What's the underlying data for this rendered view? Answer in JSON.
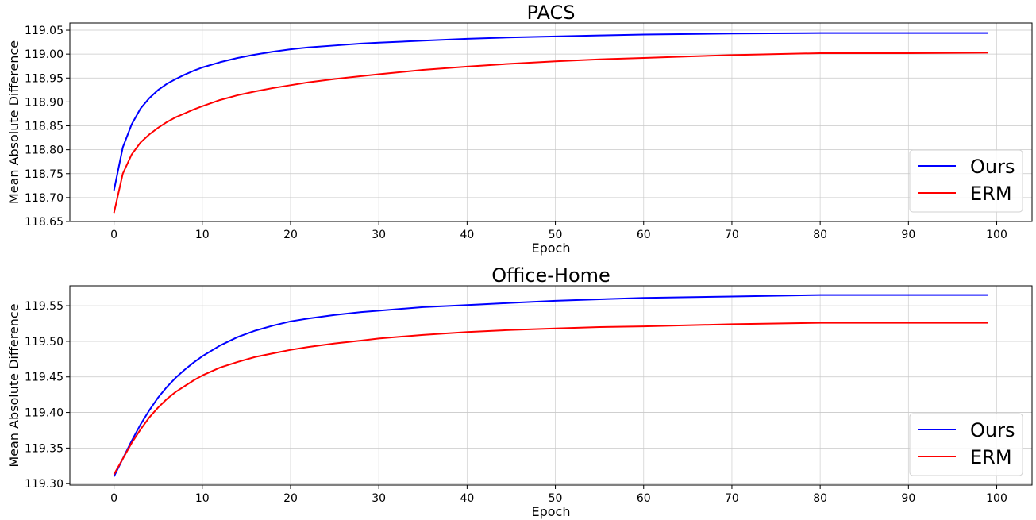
{
  "chart_data": [
    {
      "type": "line",
      "title": "PACS",
      "xlabel": "Epoch",
      "ylabel": "Mean Absolute Difference",
      "xlim": [
        -5,
        104
      ],
      "ylim": [
        118.65,
        119.065
      ],
      "xticks": [
        0,
        10,
        20,
        30,
        40,
        50,
        60,
        70,
        80,
        90,
        100
      ],
      "yticks": [
        118.65,
        118.7,
        118.75,
        118.8,
        118.85,
        118.9,
        118.95,
        119.0,
        119.05
      ],
      "ytick_labels": [
        "118.65",
        "118.70",
        "118.75",
        "118.80",
        "118.85",
        "118.90",
        "118.95",
        "119.00",
        "119.05"
      ],
      "grid": true,
      "legend_position": "lower-right",
      "series": [
        {
          "name": "Ours",
          "color": "#0000ff",
          "x": [
            0,
            1,
            2,
            3,
            4,
            5,
            6,
            7,
            8,
            9,
            10,
            12,
            14,
            16,
            18,
            20,
            22,
            25,
            28,
            30,
            35,
            40,
            45,
            50,
            55,
            60,
            70,
            80,
            90,
            99
          ],
          "y": [
            118.715,
            118.805,
            118.853,
            118.886,
            118.908,
            118.925,
            118.938,
            118.948,
            118.957,
            118.965,
            118.972,
            118.983,
            118.992,
            118.999,
            119.005,
            119.01,
            119.014,
            119.018,
            119.022,
            119.024,
            119.028,
            119.032,
            119.035,
            119.037,
            119.039,
            119.041,
            119.043,
            119.044,
            119.044,
            119.044
          ]
        },
        {
          "name": "ERM",
          "color": "#ff0000",
          "x": [
            0,
            1,
            2,
            3,
            4,
            5,
            6,
            7,
            8,
            9,
            10,
            12,
            14,
            16,
            18,
            20,
            22,
            25,
            28,
            30,
            35,
            40,
            45,
            50,
            55,
            60,
            65,
            70,
            75,
            80,
            90,
            99
          ],
          "y": [
            118.668,
            118.75,
            118.79,
            118.815,
            118.832,
            118.846,
            118.858,
            118.868,
            118.876,
            118.884,
            118.891,
            118.904,
            118.914,
            118.922,
            118.929,
            118.935,
            118.941,
            118.948,
            118.954,
            118.958,
            118.967,
            118.974,
            118.98,
            118.985,
            118.989,
            118.992,
            118.995,
            118.998,
            119.0,
            119.002,
            119.002,
            119.003
          ]
        }
      ]
    },
    {
      "type": "line",
      "title": "Office-Home",
      "xlabel": "Epoch",
      "ylabel": "Mean Absolute Difference",
      "xlim": [
        -5,
        104
      ],
      "ylim": [
        119.298,
        119.578
      ],
      "xticks": [
        0,
        10,
        20,
        30,
        40,
        50,
        60,
        70,
        80,
        90,
        100
      ],
      "yticks": [
        119.3,
        119.35,
        119.4,
        119.45,
        119.5,
        119.55
      ],
      "ytick_labels": [
        "119.30",
        "119.35",
        "119.40",
        "119.45",
        "119.50",
        "119.55"
      ],
      "grid": true,
      "legend_position": "lower-right",
      "series": [
        {
          "name": "Ours",
          "color": "#0000ff",
          "x": [
            0,
            1,
            2,
            3,
            4,
            5,
            6,
            7,
            8,
            9,
            10,
            12,
            14,
            16,
            18,
            20,
            22,
            25,
            28,
            30,
            35,
            40,
            45,
            50,
            55,
            60,
            70,
            80,
            90,
            99
          ],
          "y": [
            119.31,
            119.335,
            119.36,
            119.383,
            119.403,
            119.421,
            119.436,
            119.449,
            119.46,
            119.47,
            119.479,
            119.494,
            119.506,
            119.515,
            119.522,
            119.528,
            119.532,
            119.537,
            119.541,
            119.543,
            119.548,
            119.551,
            119.554,
            119.557,
            119.559,
            119.561,
            119.563,
            119.565,
            119.565,
            119.565
          ]
        },
        {
          "name": "ERM",
          "color": "#ff0000",
          "x": [
            0,
            1,
            2,
            3,
            4,
            5,
            6,
            7,
            8,
            9,
            10,
            12,
            14,
            16,
            18,
            20,
            22,
            25,
            28,
            30,
            35,
            40,
            45,
            50,
            55,
            60,
            70,
            80,
            90,
            99
          ],
          "y": [
            119.313,
            119.335,
            119.357,
            119.376,
            119.393,
            119.407,
            119.419,
            119.429,
            119.437,
            119.445,
            119.452,
            119.463,
            119.471,
            119.478,
            119.483,
            119.488,
            119.492,
            119.497,
            119.501,
            119.504,
            119.509,
            119.513,
            119.516,
            119.518,
            119.52,
            119.521,
            119.524,
            119.526,
            119.526,
            119.526
          ]
        }
      ]
    }
  ]
}
